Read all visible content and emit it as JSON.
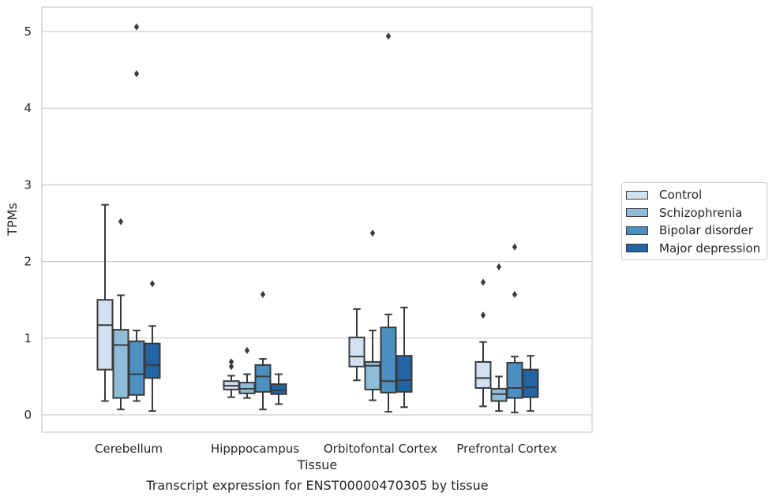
{
  "chart_data": {
    "type": "boxplot",
    "title": "Transcript expression for ENST00000470305 by tissue",
    "xlabel": "Tissue",
    "ylabel": "TPMs",
    "ylim": [
      -0.15,
      5.3
    ],
    "yticks": [
      0,
      1,
      2,
      3,
      4,
      5
    ],
    "grid": true,
    "legend_position": "right",
    "categories": [
      "Cerebellum",
      "Hipppocampus",
      "Orbitofontal Cortex",
      "Prefrontal Cortex"
    ],
    "series": [
      {
        "name": "Control",
        "color": "#d1e1f0",
        "boxes": [
          {
            "whislo": 0.18,
            "q1": 0.59,
            "med": 1.17,
            "q3": 1.5,
            "whishi": 2.74,
            "fliers": []
          },
          {
            "whislo": 0.23,
            "q1": 0.33,
            "med": 0.38,
            "q3": 0.44,
            "whishi": 0.51,
            "fliers": [
              0.63,
              0.69
            ]
          },
          {
            "whislo": 0.45,
            "q1": 0.63,
            "med": 0.76,
            "q3": 1.01,
            "whishi": 1.38,
            "fliers": []
          },
          {
            "whislo": 0.11,
            "q1": 0.35,
            "med": 0.48,
            "q3": 0.69,
            "whishi": 0.95,
            "fliers": [
              1.3,
              1.73
            ]
          }
        ]
      },
      {
        "name": "Schizophrenia",
        "color": "#8fbcd9",
        "boxes": [
          {
            "whislo": 0.07,
            "q1": 0.22,
            "med": 0.91,
            "q3": 1.11,
            "whishi": 1.56,
            "fliers": [
              2.52
            ]
          },
          {
            "whislo": 0.22,
            "q1": 0.28,
            "med": 0.34,
            "q3": 0.42,
            "whishi": 0.53,
            "fliers": [
              0.84
            ]
          },
          {
            "whislo": 0.19,
            "q1": 0.33,
            "med": 0.64,
            "q3": 0.69,
            "whishi": 1.1,
            "fliers": [
              2.37
            ]
          },
          {
            "whislo": 0.05,
            "q1": 0.18,
            "med": 0.27,
            "q3": 0.34,
            "whishi": 0.5,
            "fliers": [
              1.93
            ]
          }
        ]
      },
      {
        "name": "Bipolar disorder",
        "color": "#4b90c1",
        "boxes": [
          {
            "whislo": 0.18,
            "q1": 0.26,
            "med": 0.53,
            "q3": 0.96,
            "whishi": 1.1,
            "fliers": [
              4.45,
              5.06
            ]
          },
          {
            "whislo": 0.07,
            "q1": 0.3,
            "med": 0.5,
            "q3": 0.65,
            "whishi": 0.73,
            "fliers": [
              1.57
            ]
          },
          {
            "whislo": 0.04,
            "q1": 0.29,
            "med": 0.44,
            "q3": 1.14,
            "whishi": 1.31,
            "fliers": [
              4.94
            ]
          },
          {
            "whislo": 0.03,
            "q1": 0.22,
            "med": 0.35,
            "q3": 0.68,
            "whishi": 0.76,
            "fliers": [
              1.57,
              2.19
            ]
          }
        ]
      },
      {
        "name": "Major depression",
        "color": "#2264a4",
        "boxes": [
          {
            "whislo": 0.05,
            "q1": 0.48,
            "med": 0.65,
            "q3": 0.93,
            "whishi": 1.16,
            "fliers": [
              1.71
            ]
          },
          {
            "whislo": 0.14,
            "q1": 0.27,
            "med": 0.32,
            "q3": 0.4,
            "whishi": 0.53,
            "fliers": []
          },
          {
            "whislo": 0.1,
            "q1": 0.3,
            "med": 0.45,
            "q3": 0.77,
            "whishi": 1.4,
            "fliers": []
          },
          {
            "whislo": 0.05,
            "q1": 0.23,
            "med": 0.36,
            "q3": 0.59,
            "whishi": 0.77,
            "fliers": []
          }
        ]
      }
    ]
  }
}
